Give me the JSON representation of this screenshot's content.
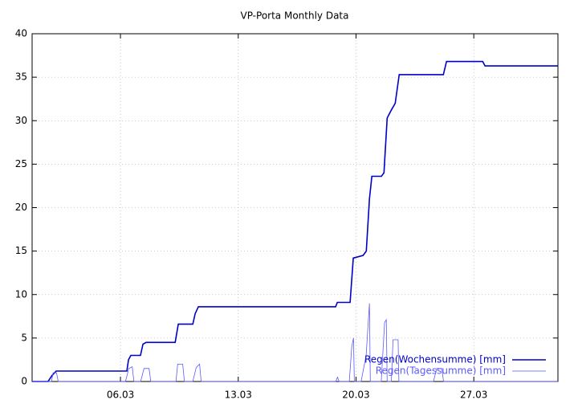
{
  "chart_data": {
    "type": "line",
    "title": "VP-Porta Monthly Data",
    "xlim": [
      0.75,
      32
    ],
    "ylim": [
      0,
      40
    ],
    "xticks": [
      {
        "value": 6,
        "label": "06.03"
      },
      {
        "value": 13,
        "label": "13.03"
      },
      {
        "value": 20,
        "label": "20.03"
      },
      {
        "value": 27,
        "label": "27.03"
      }
    ],
    "yticks": [
      0,
      5,
      10,
      15,
      20,
      25,
      30,
      35,
      40
    ],
    "grid": true,
    "legend": "lower right",
    "series": [
      {
        "name": "Regen(Wochensumme) [mm]",
        "color": "#0000c8",
        "width": 1.6,
        "x": [
          0.75,
          1.7,
          1.94,
          2.18,
          6.38,
          6.48,
          6.62,
          7.19,
          7.34,
          7.53,
          9.25,
          9.44,
          10.3,
          10.44,
          10.63,
          18.79,
          18.89,
          19.65,
          19.84,
          20.42,
          20.61,
          20.8,
          20.94,
          21.51,
          21.66,
          21.85,
          22.09,
          22.33,
          22.57,
          25.19,
          25.38,
          27.53,
          27.67,
          32
        ],
        "values": [
          0,
          0,
          0.7,
          1.2,
          1.2,
          2.5,
          3.0,
          3.0,
          4.3,
          4.5,
          4.5,
          6.6,
          6.6,
          7.8,
          8.6,
          8.6,
          9.1,
          9.1,
          14.2,
          14.5,
          15,
          21,
          23.6,
          23.6,
          24,
          30.3,
          31.2,
          32,
          35.3,
          35.3,
          36.8,
          36.8,
          36.3,
          36.3
        ]
      },
      {
        "name": "Regen(Tagessumme) [mm]",
        "color": "#5a5aff",
        "width": 0.8,
        "x": [
          0.75,
          1.9,
          2.0,
          2.2,
          2.3,
          6.3,
          6.5,
          6.7,
          6.8,
          7.2,
          7.4,
          7.7,
          7.8,
          9.3,
          9.4,
          9.7,
          9.8,
          10.3,
          10.5,
          10.7,
          10.8,
          18.8,
          18.9,
          19.0,
          19.6,
          19.75,
          19.85,
          19.9,
          20.3,
          20.6,
          20.8,
          20.85,
          21.5,
          21.7,
          21.8,
          21.85,
          22.1,
          22.2,
          22.5,
          22.55,
          24.6,
          24.8,
          25.1,
          25.2,
          32
        ],
        "values": [
          0,
          0,
          1.0,
          1.0,
          0,
          0,
          1.5,
          1.7,
          0,
          0,
          1.5,
          1.5,
          0,
          0,
          2.0,
          2.0,
          0,
          0,
          1.6,
          2.0,
          0,
          0,
          0.5,
          0,
          0,
          4.0,
          5.0,
          0,
          0,
          3.0,
          9.0,
          0,
          0,
          6.8,
          7.1,
          0,
          0,
          4.8,
          4.8,
          0,
          0,
          1.5,
          1.5,
          0,
          0
        ]
      }
    ]
  }
}
